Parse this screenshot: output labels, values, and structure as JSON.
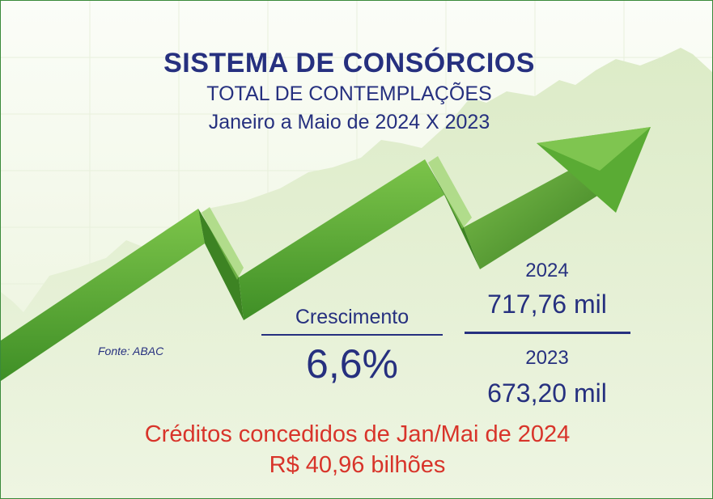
{
  "header": {
    "title": "SISTEMA DE CONSÓRCIOS",
    "subtitle": "TOTAL DE CONTEMPLAÇÕES",
    "period": "Janeiro a Maio de 2024 X 2023"
  },
  "source": "Fonte: ABAC",
  "growth": {
    "label": "Crescimento",
    "value": "6,6%"
  },
  "comparison": {
    "current_year": "2024",
    "current_value": "717,76 mil",
    "previous_year": "2023",
    "previous_value": "673,20 mil"
  },
  "credits": {
    "line": "Créditos concedidos de Jan/Mai de 2024",
    "value": "R$ 40,96 bilhões"
  },
  "colors": {
    "title_blue": "#26307f",
    "highlight_red": "#d8342a",
    "arrow_green": "#4a9e2f",
    "background_green": "#e4efd2"
  },
  "graphic": {
    "icon": "rising-zigzag-arrow-icon"
  }
}
